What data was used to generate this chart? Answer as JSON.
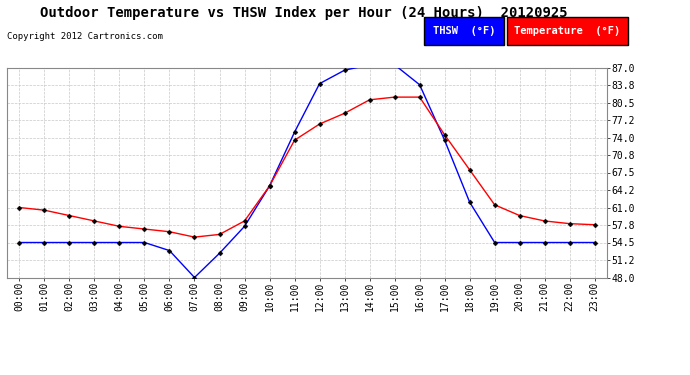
{
  "title": "Outdoor Temperature vs THSW Index per Hour (24 Hours)  20120925",
  "copyright": "Copyright 2012 Cartronics.com",
  "hours": [
    "00:00",
    "01:00",
    "02:00",
    "03:00",
    "04:00",
    "05:00",
    "06:00",
    "07:00",
    "08:00",
    "09:00",
    "10:00",
    "11:00",
    "12:00",
    "13:00",
    "14:00",
    "15:00",
    "16:00",
    "17:00",
    "18:00",
    "19:00",
    "20:00",
    "21:00",
    "22:00",
    "23:00"
  ],
  "thsw": [
    54.5,
    54.5,
    54.5,
    54.5,
    54.5,
    54.5,
    53.0,
    48.0,
    52.5,
    57.5,
    65.0,
    75.0,
    84.0,
    86.5,
    87.5,
    87.5,
    83.8,
    73.5,
    62.0,
    54.5,
    54.5,
    54.5,
    54.5,
    54.5
  ],
  "temperature": [
    61.0,
    60.5,
    59.5,
    58.5,
    57.5,
    57.0,
    56.5,
    55.5,
    56.0,
    58.5,
    65.0,
    73.5,
    76.5,
    78.5,
    81.0,
    81.5,
    81.5,
    74.5,
    68.0,
    61.5,
    59.5,
    58.5,
    58.0,
    57.8
  ],
  "thsw_color": "#0000ff",
  "temp_color": "#ff0000",
  "bg_color": "#ffffff",
  "grid_color": "#c8c8c8",
  "ylim": [
    48.0,
    87.0
  ],
  "yticks": [
    48.0,
    51.2,
    54.5,
    57.8,
    61.0,
    64.2,
    67.5,
    70.8,
    74.0,
    77.2,
    80.5,
    83.8,
    87.0
  ],
  "legend_thsw_bg": "#0000ff",
  "legend_temp_bg": "#ff0000",
  "title_fontsize": 10,
  "copyright_fontsize": 6.5,
  "tick_fontsize": 7,
  "legend_fontsize": 7.5
}
